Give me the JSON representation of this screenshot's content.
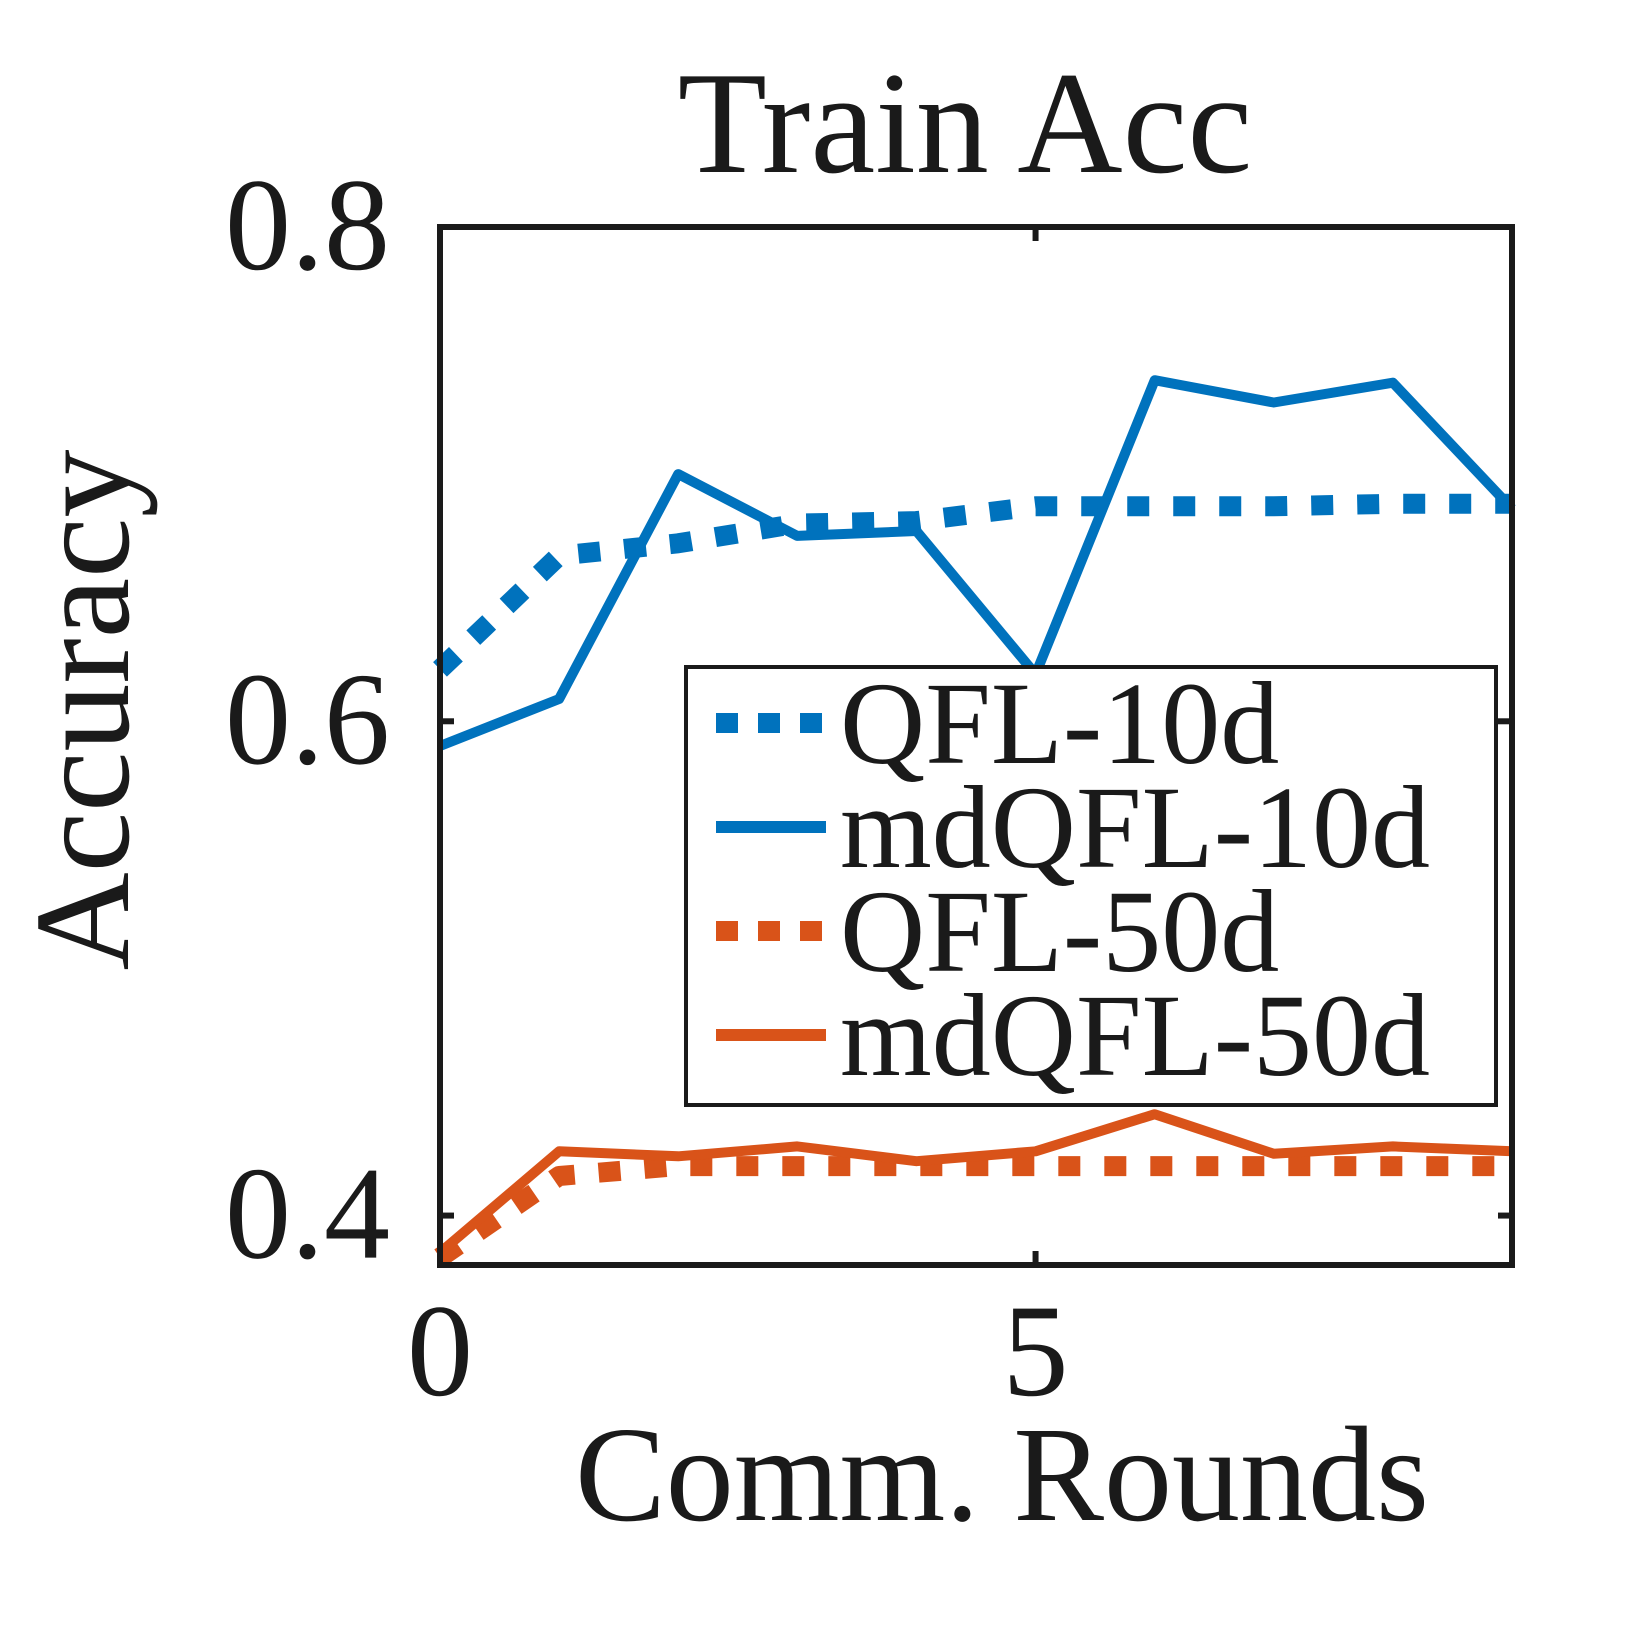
{
  "chart_data": {
    "type": "line",
    "title": "Train Acc",
    "xlabel": "Comm. Rounds",
    "ylabel": "Accuracy",
    "xlim": [
      0,
      9
    ],
    "ylim": [
      0.38,
      0.8
    ],
    "xticks": [
      0,
      5
    ],
    "xtick_labels": [
      "0",
      "5"
    ],
    "yticks": [
      0.4,
      0.6,
      0.8
    ],
    "ytick_labels": [
      "0.4",
      "0.6",
      "0.8"
    ],
    "grid": false,
    "legend_position": "center-right",
    "x": [
      0,
      1,
      2,
      3,
      4,
      5,
      6,
      7,
      8,
      9
    ],
    "series": [
      {
        "name": "QFL-10d",
        "color": "#0072bd",
        "style": "dotted",
        "values": [
          0.621,
          0.667,
          0.672,
          0.68,
          0.681,
          0.687,
          0.687,
          0.687,
          0.688,
          0.688
        ]
      },
      {
        "name": "mdQFL-10d",
        "color": "#0072bd",
        "style": "solid",
        "values": [
          0.59,
          0.609,
          0.7,
          0.675,
          0.677,
          0.619,
          0.738,
          0.729,
          0.737,
          0.686
        ]
      },
      {
        "name": "QFL-50d",
        "color": "#d95319",
        "style": "dotted",
        "values": [
          0.383,
          0.416,
          0.42,
          0.42,
          0.42,
          0.42,
          0.42,
          0.42,
          0.42,
          0.42
        ]
      },
      {
        "name": "mdQFL-50d",
        "color": "#d95319",
        "style": "solid",
        "values": [
          0.385,
          0.426,
          0.424,
          0.428,
          0.422,
          0.426,
          0.441,
          0.425,
          0.428,
          0.426
        ]
      }
    ]
  }
}
